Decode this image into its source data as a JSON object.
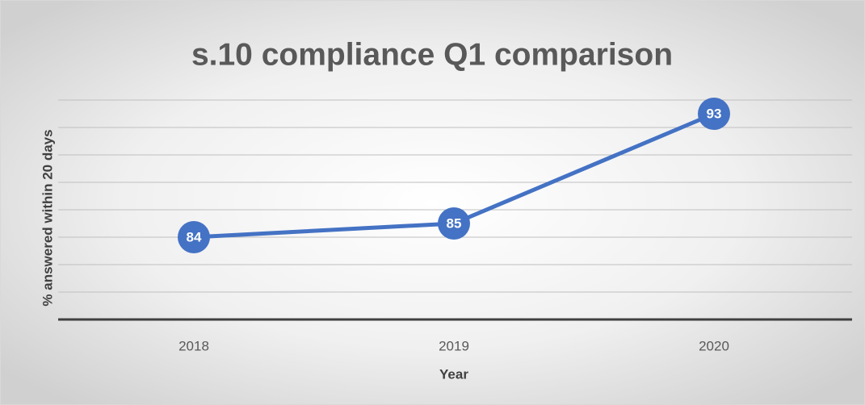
{
  "chart_data": {
    "type": "line",
    "title": "s.10 compliance Q1 comparison",
    "x_label": "Year",
    "y_label": "% answered within 20 days",
    "categories": [
      "2018",
      "2019",
      "2020"
    ],
    "series": [
      {
        "name": "% answered within 20 days",
        "color": "#4472c4",
        "values": [
          84,
          85,
          93
        ]
      }
    ],
    "ylim": [
      78,
      94
    ],
    "yticks": [
      78,
      80,
      82,
      84,
      86,
      88,
      90,
      92,
      94
    ],
    "grid": true
  }
}
